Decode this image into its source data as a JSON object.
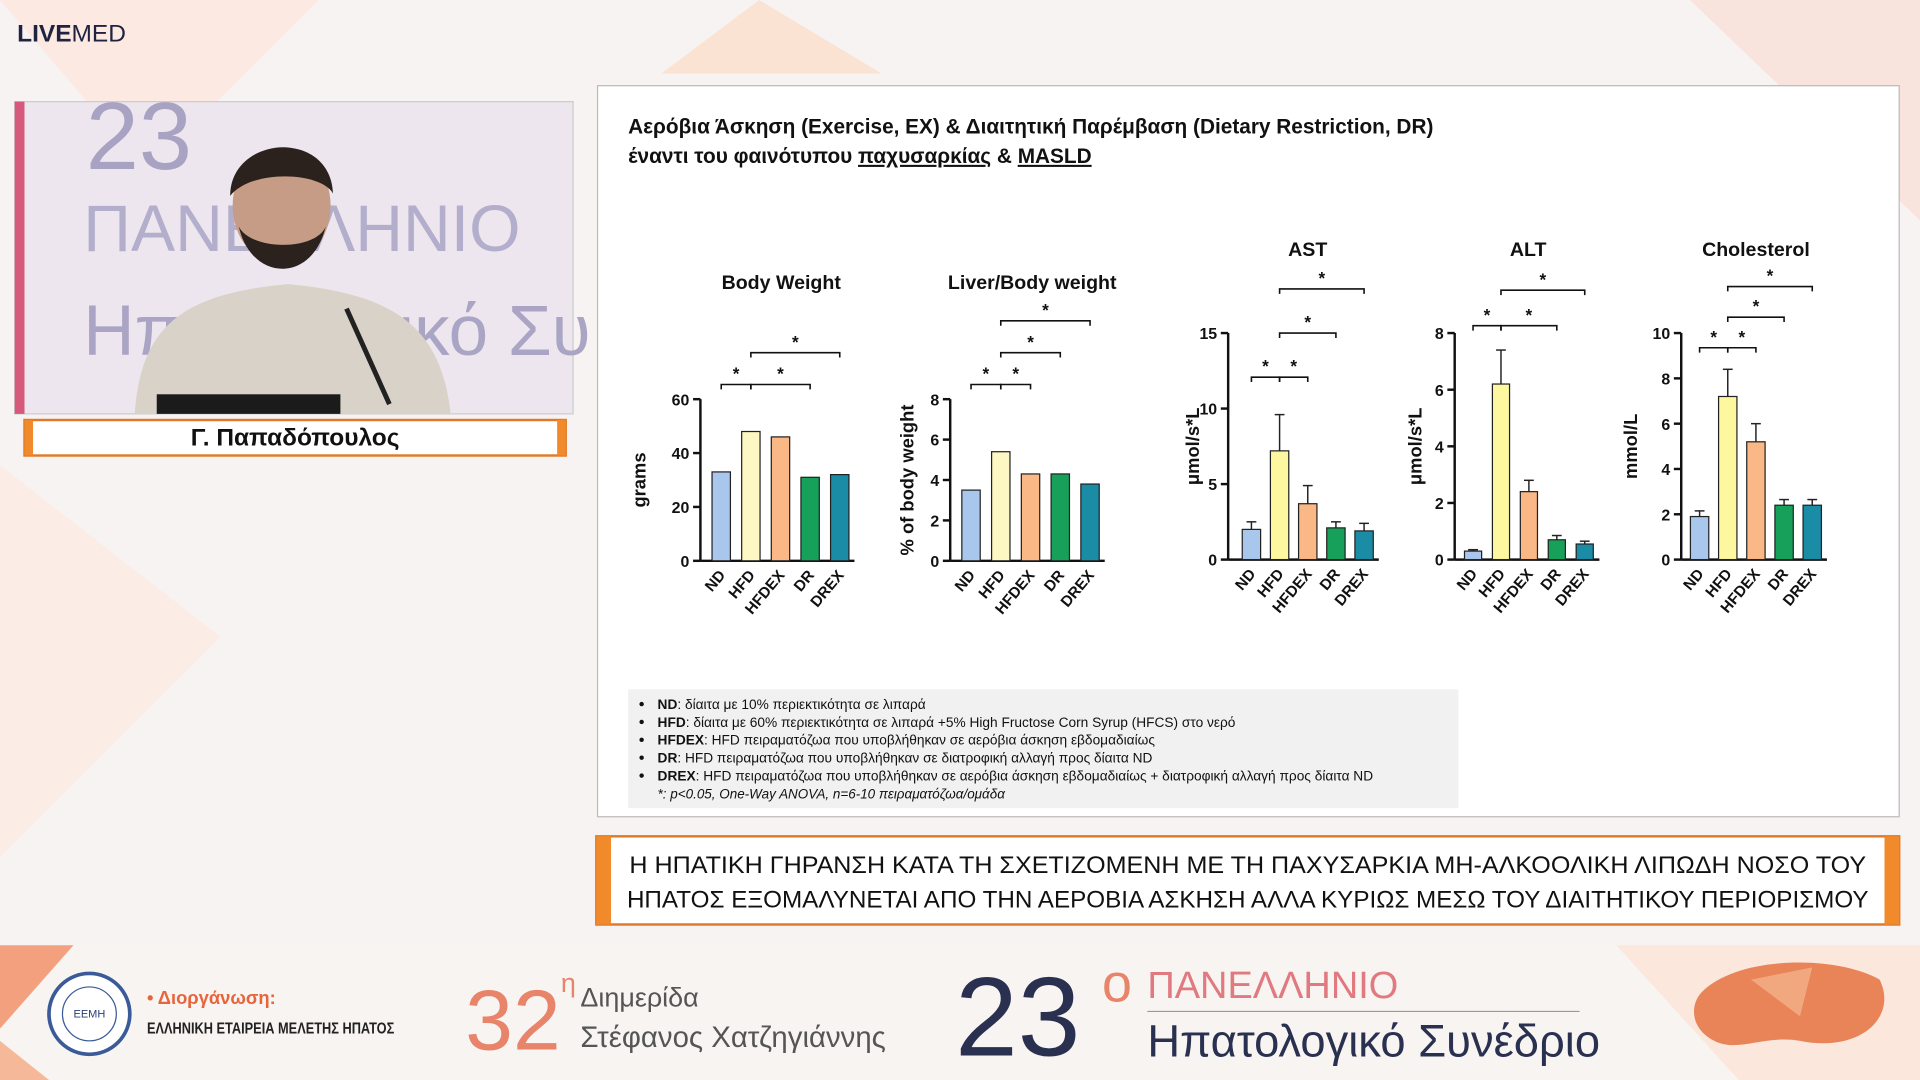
{
  "logo": {
    "bold": "LIVE",
    "light": "MED"
  },
  "speaker_video": {
    "backdrop_lines": [
      "23",
      "ΠΑΝΕΛΛΗΝΙΟ",
      "Ηπατολογικό Συ"
    ]
  },
  "speaker_name": "Γ. Παπαδόπουλος",
  "slide": {
    "title_line1": "Αερόβια Άσκηση (Exercise, EX) & Διαιτητική Παρέμβαση (Dietary Restriction, DR)",
    "title_line2": {
      "prefix": "έναντι του φαινότυπου",
      "term1": "παχυσαρκίας",
      "joiner": "&",
      "term2": "MASLD"
    },
    "notes": [
      {
        "term": "ND",
        "text": ": δίαιτα με 10% περιεκτικότητα σε λιπαρά"
      },
      {
        "term": "HFD",
        "text": ": δίαιτα με 60% περιεκτικότητα σε λιπαρά +5% High Fructose Corn Syrup (HFCS) στο νερό"
      },
      {
        "term": "HFDEX",
        "text": ": HFD πειραματόζωα που υποβλήθηκαν σε αερόβια άσκηση εβδομαδιαίως"
      },
      {
        "term": "DR",
        "text": ": HFD πειραματόζωα που υποβλήθηκαν σε διατροφική αλλαγή προς δίαιτα ND"
      },
      {
        "term": "DREX",
        "text": ": HFD πειραματόζωα που υποβλήθηκαν σε αερόβια άσκηση εβδομαδιαίως + διατροφική αλλαγή προς δίαιτα ND"
      }
    ],
    "footnote": "*: p<0.05, One-Way ANOVA, n=6-10 πειραματόζωα/ομάδα"
  },
  "chart_data": [
    {
      "type": "bar",
      "title": "Body Weight",
      "y_label": "grams",
      "categories": [
        "ND",
        "HFD",
        "HFDEX",
        "DR",
        "DREX"
      ],
      "values": [
        33,
        48,
        46,
        31,
        32
      ],
      "colors": [
        "#a9c6ec",
        "#fdf7c3",
        "#f9b885",
        "#17a05a",
        "#1a8ca6"
      ],
      "ylim": [
        0,
        60
      ],
      "yticks": [
        0,
        20,
        40,
        60
      ],
      "comparisons": [
        {
          "label": "*",
          "from": 0,
          "to": 1
        },
        {
          "label": "*",
          "from": 1,
          "to": 3
        },
        {
          "label": "*",
          "from": 1,
          "to": 4
        }
      ]
    },
    {
      "type": "bar",
      "title": "Liver/Body weight",
      "y_label": "% of body weight",
      "categories": [
        "ND",
        "HFD",
        "HFDEX",
        "DR",
        "DREX"
      ],
      "values": [
        3.5,
        5.4,
        4.3,
        4.3,
        3.8
      ],
      "colors": [
        "#a9c6ec",
        "#fdf7c3",
        "#f9b885",
        "#17a05a",
        "#1a8ca6"
      ],
      "ylim": [
        0,
        8
      ],
      "yticks": [
        0,
        2,
        4,
        6,
        8
      ],
      "comparisons": [
        {
          "label": "*",
          "from": 0,
          "to": 1
        },
        {
          "label": "*",
          "from": 1,
          "to": 2
        },
        {
          "label": "*",
          "from": 1,
          "to": 3
        },
        {
          "label": "*",
          "from": 1,
          "to": 4
        }
      ]
    },
    {
      "type": "bar",
      "title": "AST",
      "y_label": "μmol/s*L",
      "categories": [
        "ND",
        "HFD",
        "HFDEX",
        "DR",
        "DREX"
      ],
      "values": [
        2.0,
        7.2,
        3.7,
        2.1,
        1.9
      ],
      "errors": [
        0.5,
        2.4,
        1.2,
        0.4,
        0.5
      ],
      "colors": [
        "#a9c6ec",
        "#fdf7a0",
        "#f9b885",
        "#17a05a",
        "#1a8ca6"
      ],
      "ylim": [
        0,
        15
      ],
      "yticks": [
        0,
        5,
        10,
        15
      ],
      "comparisons": [
        {
          "label": "*",
          "from": 0,
          "to": 1
        },
        {
          "label": "*",
          "from": 1,
          "to": 2
        },
        {
          "label": "*",
          "from": 1,
          "to": 3
        },
        {
          "label": "*",
          "from": 1,
          "to": 4
        }
      ]
    },
    {
      "type": "bar",
      "title": "ALT",
      "y_label": "μmol/s*L",
      "categories": [
        "ND",
        "HFD",
        "HFDEX",
        "DR",
        "DREX"
      ],
      "values": [
        0.3,
        6.2,
        2.4,
        0.7,
        0.55
      ],
      "errors": [
        0.05,
        1.2,
        0.4,
        0.15,
        0.1
      ],
      "colors": [
        "#a9c6ec",
        "#fdf7a0",
        "#f9b885",
        "#17a05a",
        "#1a8ca6"
      ],
      "ylim": [
        0,
        8
      ],
      "yticks": [
        0,
        2,
        4,
        6,
        8
      ],
      "comparisons": [
        {
          "label": "*",
          "from": 0,
          "to": 1
        },
        {
          "label": "*",
          "from": 1,
          "to": 3
        },
        {
          "label": "*",
          "from": 1,
          "to": 4
        }
      ]
    },
    {
      "type": "bar",
      "title": "Cholesterol",
      "y_label": "mmol/L",
      "categories": [
        "ND",
        "HFD",
        "HFDEX",
        "DR",
        "DREX"
      ],
      "values": [
        1.9,
        7.2,
        5.2,
        2.4,
        2.4
      ],
      "errors": [
        0.25,
        1.2,
        0.8,
        0.25,
        0.25
      ],
      "colors": [
        "#a9c6ec",
        "#fdf7a0",
        "#f9b885",
        "#17a05a",
        "#1a8ca6"
      ],
      "ylim": [
        0,
        10
      ],
      "yticks": [
        0,
        2,
        4,
        6,
        8,
        10
      ],
      "comparisons": [
        {
          "label": "*",
          "from": 0,
          "to": 1
        },
        {
          "label": "*",
          "from": 1,
          "to": 2
        },
        {
          "label": "*",
          "from": 1,
          "to": 3
        },
        {
          "label": "*",
          "from": 1,
          "to": 4
        }
      ]
    }
  ],
  "banner": {
    "line1": "Η ΗΠΑΤΙΚΗ ΓΗΡΑΝΣΗ ΚΑΤΑ ΤΗ ΣΧΕΤΙΖΟΜΕΝΗ ΜΕ ΤΗ ΠΑΧΥΣΑΡΚΙΑ ΜΗ-ΑΛΚΟΟΛΙΚΗ ΛΙΠΩΔΗ ΝΟΣΟ ΤΟΥ",
    "line2": "ΗΠΑΤΟΣ ΕΞΟΜΑΛΥΝΕΤΑΙ ΑΠΟ ΤΗΝ ΑΕΡΟΒΙΑ ΑΣΚΗΣΗ ΑΛΛΑ ΚΥΡΙΩΣ ΜΕΣΩ ΤΟΥ ΔΙΑΙΤΗΤΙΚΟΥ ΠΕΡΙΟΡΙΣΜΟΥ"
  },
  "footer": {
    "logo_text": "ΕΕΜΗ",
    "organizer_label": "• Διοργάνωση:",
    "organizer": "ΕΛΛΗΝΙΚΗ ΕΤΑΙΡΕΙΑ ΜΕΛΕΤΗΣ ΗΠΑΤΟΣ",
    "meeting_number": "32",
    "meeting_suffix": "η",
    "meeting_type": "Διημερίδα",
    "meeting_name": "Στέφανος Χατζηγιάννης",
    "congress_number": "23",
    "congress_suffix": "ο",
    "congress_line1": "ΠΑΝΕΛΛΗΝΙΟ",
    "congress_line2": "Ηπατολογικό Συνέδριο"
  }
}
